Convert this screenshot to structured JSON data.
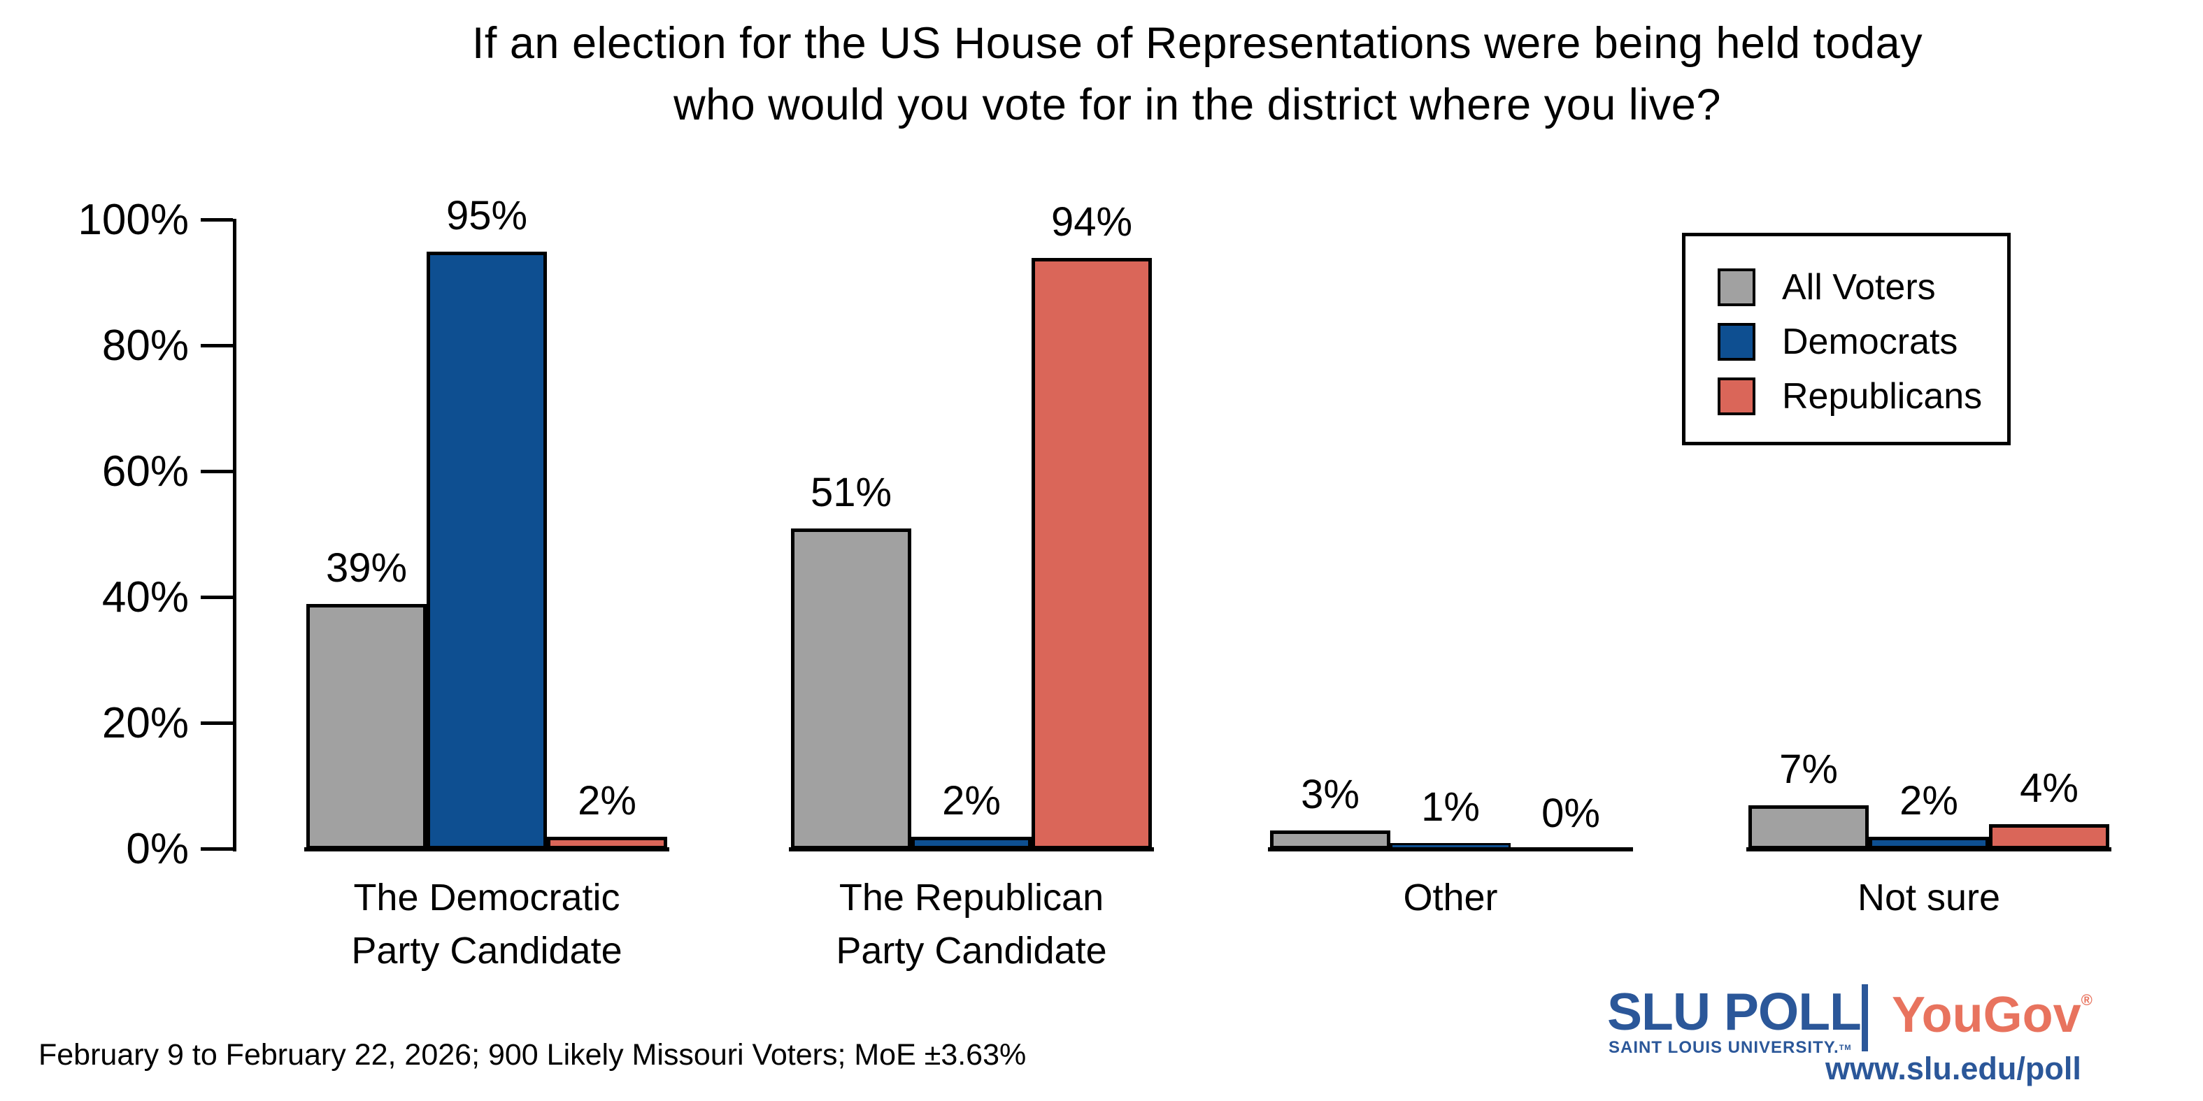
{
  "title": {
    "line1": "If an election for the US House of Representations were being held today",
    "line2": "who would you vote for in the district where you live?"
  },
  "chart_data": {
    "type": "bar",
    "title": "If an election for the US House of Representations were being held today who would you vote for in the district where you live?",
    "categories": [
      "The Democratic Party Candidate",
      "The Republican Party Candidate",
      "Other",
      "Not sure"
    ],
    "category_label_lines": [
      [
        "The Democratic",
        "Party Candidate"
      ],
      [
        "The Republican",
        "Party Candidate"
      ],
      [
        "Other"
      ],
      [
        "Not sure"
      ]
    ],
    "series": [
      {
        "name": "All Voters",
        "color": "#a1a1a1",
        "values": [
          39,
          51,
          3,
          7
        ],
        "labels": [
          "39%",
          "51%",
          "3%",
          "7%"
        ]
      },
      {
        "name": "Democrats",
        "color": "#0e4f91",
        "values": [
          95,
          2,
          1,
          2
        ],
        "labels": [
          "95%",
          "2%",
          "1%",
          "2%"
        ]
      },
      {
        "name": "Republicans",
        "color": "#da6659",
        "values": [
          2,
          94,
          0,
          4
        ],
        "labels": [
          "2%",
          "94%",
          "0%",
          "4%"
        ]
      }
    ],
    "yticks": [
      {
        "value": 100,
        "label": "100%"
      },
      {
        "value": 80,
        "label": "80%"
      },
      {
        "value": 60,
        "label": "60%"
      },
      {
        "value": 40,
        "label": "40%"
      },
      {
        "value": 20,
        "label": "20%"
      },
      {
        "value": 0,
        "label": "0%"
      }
    ],
    "ylim": [
      0,
      100
    ],
    "grid": false,
    "legend_position": "upper right",
    "legend_entries": [
      "All Voters",
      "Democrats",
      "Republicans"
    ]
  },
  "footer": {
    "note": "February 9 to February 22, 2026; 900 Likely Missouri Voters; MoE ±3.63%"
  },
  "branding": {
    "slu_poll": "SLU POLL",
    "slu_sub": "SAINT LOUIS UNIVERSITY.",
    "slu_tm": "TM",
    "yougov": "YouGov",
    "yougov_reg": "®",
    "url": "www.slu.edu/poll",
    "slu_blue": "#2b5799",
    "yougov_coral": "#e8735e"
  }
}
